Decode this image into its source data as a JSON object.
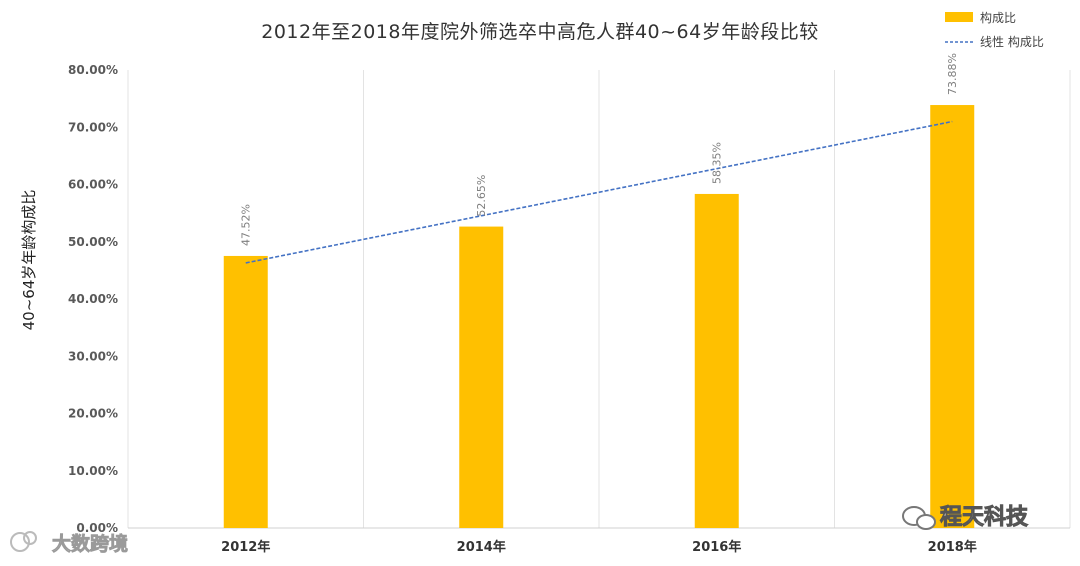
{
  "chart_data": {
    "type": "bar",
    "title": "2012年至2018年度院外筛选卒中高危人群40~64岁年龄段比较",
    "ylabel": "40~64岁年龄构成比",
    "xlabel": "",
    "categories": [
      "2012年",
      "2014年",
      "2016年",
      "2018年"
    ],
    "series": [
      {
        "name": "构成比",
        "values": [
          47.52,
          52.65,
          58.35,
          73.88
        ],
        "color": "#FFC000"
      }
    ],
    "data_labels": [
      "47.52%",
      "52.65%",
      "58.35%",
      "73.88%"
    ],
    "trendline": {
      "name": "线性 构成比",
      "type": "linear",
      "color": "#4472C4",
      "style": "dashed",
      "start": 46.3,
      "end": 71.0
    },
    "yticks": [
      "0.00%",
      "10.00%",
      "20.00%",
      "30.00%",
      "40.00%",
      "50.00%",
      "60.00%",
      "70.00%",
      "80.00%"
    ],
    "ylim": [
      0,
      80
    ],
    "grid": "vertical",
    "legend": "top-right"
  },
  "watermarks": {
    "left": "大数跨境",
    "right": "程天科技"
  }
}
